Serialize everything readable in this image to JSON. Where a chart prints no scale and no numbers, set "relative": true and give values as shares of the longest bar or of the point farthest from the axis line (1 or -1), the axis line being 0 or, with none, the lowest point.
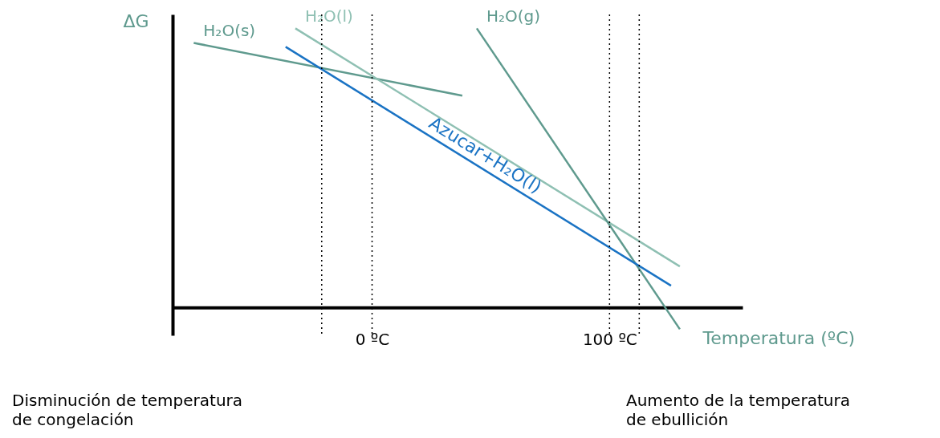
{
  "chart_data": {
    "type": "line",
    "relative": true,
    "ylabel": "ΔG",
    "xlabel": "Temperatura (ºC)",
    "xlim": [
      -84,
      156
    ],
    "xticks": [
      {
        "value": 0,
        "label": "0 ºC"
      },
      {
        "value": 100,
        "label": "100 ºC"
      }
    ],
    "tick_labels": "x",
    "grid": false,
    "legend": false,
    "marker": "none",
    "line_style": "solid",
    "series": [
      {
        "name": "H₂O(s)",
        "color": "#5f9a8e",
        "x": [
          -75.1,
          38.0
        ],
        "values": [
          0.948,
          0.759
        ]
      },
      {
        "name": "H₂O(l)",
        "color": "#8fc0b3",
        "x": [
          -32.3,
          129.6
        ],
        "values": [
          1.0,
          0.147
        ]
      },
      {
        "name": "H₂O(g)",
        "color": "#5f9a8e",
        "x": [
          44.1,
          129.6
        ],
        "values": [
          1.0,
          -0.078
        ]
      },
      {
        "name": "Azucar+H₂O(l)",
        "color": "#1a73c4",
        "x": [
          -36.4,
          125.9
        ],
        "values": [
          0.934,
          0.078
        ]
      }
    ],
    "ref_lines": [
      {
        "axis": "x",
        "value": -21.2,
        "color": "#000000",
        "line_style": "dotted"
      },
      {
        "axis": "x",
        "value": 0,
        "color": "#000000",
        "line_style": "dotted"
      },
      {
        "axis": "x",
        "value": 100,
        "color": "#000000",
        "line_style": "dotted"
      },
      {
        "axis": "x",
        "value": 112.5,
        "color": "#000000",
        "line_style": "dotted"
      }
    ],
    "annotations": [
      "Disminución de temperatura\nde congelación",
      "Aumento de la temperatura\nde ebullición"
    ]
  }
}
